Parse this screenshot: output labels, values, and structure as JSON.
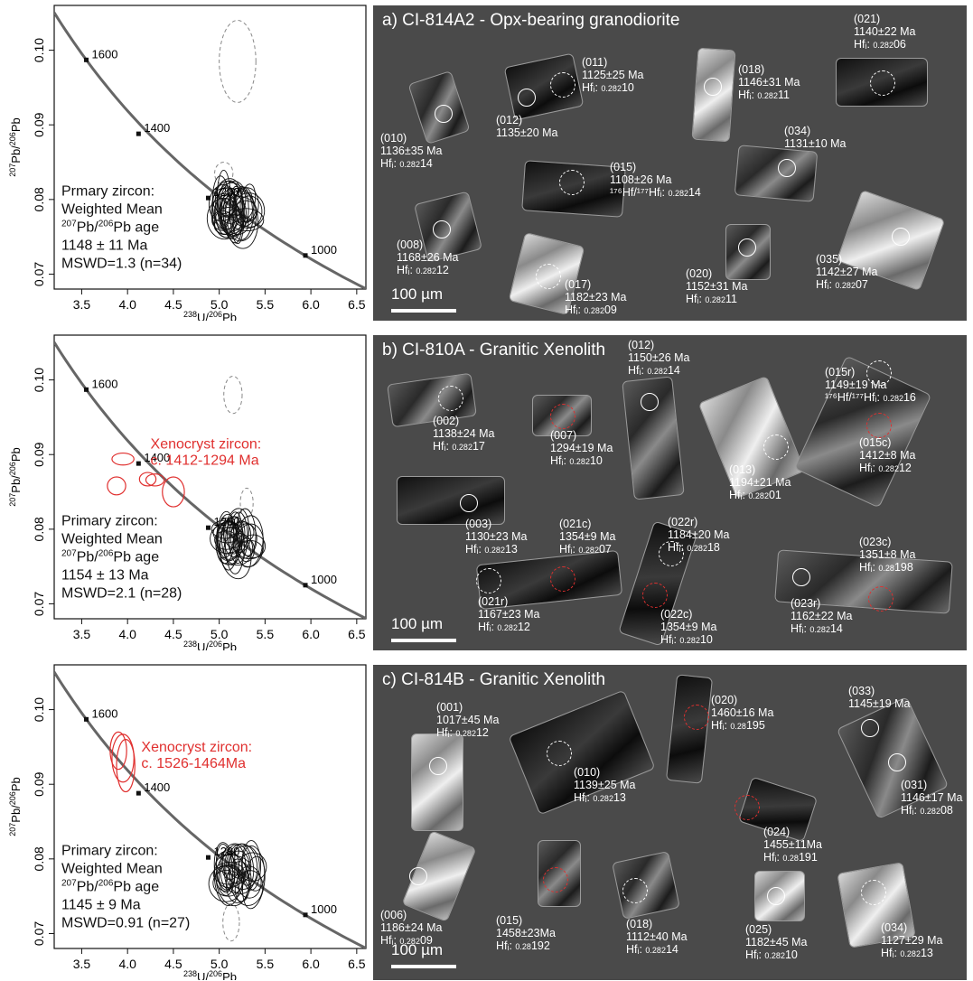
{
  "chart_data": [
    {
      "type": "scatter",
      "panel": "a",
      "xlabel_sup": "238",
      "xlabel_main": "U/",
      "xlabel_sup2": "206",
      "xlabel_end": "Pb",
      "ylabel_sup": "207",
      "ylabel_main": "Pb/",
      "ylabel_sup2": "206",
      "ylabel_end": "Pb",
      "xlim": [
        3.2,
        6.6
      ],
      "ylim": [
        0.068,
        0.106
      ],
      "xticks": [
        "3.5",
        "4.0",
        "4.5",
        "5.0",
        "5.5",
        "6.0",
        "6.5"
      ],
      "yticks": [
        "0.07",
        "0.08",
        "0.09",
        "0.10"
      ],
      "concordia_ticks": [
        {
          "age": "1600",
          "x": 3.55,
          "y": 0.0987
        },
        {
          "age": "1400",
          "x": 4.12,
          "y": 0.0888
        },
        {
          "age": "1200",
          "x": 4.88,
          "y": 0.0802
        },
        {
          "age": "1000",
          "x": 5.94,
          "y": 0.0725
        }
      ],
      "annotation_lines": [
        "Prmary zircon:",
        "Weighted Mean",
        "age",
        "1148 ± 11 Ma",
        "MSWD=1.3  (n=34)"
      ],
      "ratio_sup1": "207",
      "ratio_mid": "Pb/",
      "ratio_sup2": "206",
      "ratio_end": "Pb",
      "xeno_text": [],
      "primary_ellipses": {
        "count": 34,
        "center_x": 5.18,
        "center_y": 0.0783
      },
      "dashed_ellipses": [
        {
          "x": 5.2,
          "y": 0.0985,
          "rx": 0.2,
          "ry": 0.0055
        },
        {
          "x": 5.05,
          "y": 0.0835,
          "rx": 0.1,
          "ry": 0.0015
        }
      ],
      "xeno_ellipses": []
    },
    {
      "type": "scatter",
      "panel": "b",
      "xlabel_sup": "238",
      "xlabel_main": "U/",
      "xlabel_sup2": "206",
      "xlabel_end": "Pb",
      "ylabel_sup": "207",
      "ylabel_main": "Pb/",
      "ylabel_sup2": "206",
      "ylabel_end": "Pb",
      "xlim": [
        3.2,
        6.6
      ],
      "ylim": [
        0.068,
        0.106
      ],
      "xticks": [
        "3.5",
        "4.0",
        "4.5",
        "5.0",
        "5.5",
        "6.0",
        "6.5"
      ],
      "yticks": [
        "0.07",
        "0.08",
        "0.09",
        "0.10"
      ],
      "concordia_ticks": [
        {
          "age": "1600",
          "x": 3.55,
          "y": 0.0987
        },
        {
          "age": "1400",
          "x": 4.12,
          "y": 0.0888
        },
        {
          "age": "1200",
          "x": 4.88,
          "y": 0.0802
        },
        {
          "age": "1000",
          "x": 5.94,
          "y": 0.0725
        }
      ],
      "annotation_lines": [
        "Primary zircon:",
        "Weighted Mean",
        "age",
        "1154 ± 13 Ma",
        "MSWD=2.1 (n=28)"
      ],
      "ratio_sup1": "207",
      "ratio_mid": "Pb/",
      "ratio_sup2": "206",
      "ratio_end": "Pb",
      "xeno_text": [
        "Xenocryst zircon:",
        "c. 1412-1294 Ma"
      ],
      "primary_ellipses": {
        "count": 28,
        "center_x": 5.22,
        "center_y": 0.0784
      },
      "dashed_ellipses": [
        {
          "x": 5.15,
          "y": 0.098,
          "rx": 0.1,
          "ry": 0.0025
        },
        {
          "x": 5.3,
          "y": 0.0835,
          "rx": 0.07,
          "ry": 0.002
        }
      ],
      "xeno_ellipses": [
        {
          "x": 3.95,
          "y": 0.0894,
          "rx": 0.12,
          "ry": 0.0008
        },
        {
          "x": 3.88,
          "y": 0.0858,
          "rx": 0.1,
          "ry": 0.0012
        },
        {
          "x": 4.3,
          "y": 0.0866,
          "rx": 0.1,
          "ry": 0.0008
        },
        {
          "x": 4.22,
          "y": 0.0867,
          "rx": 0.09,
          "ry": 0.0009
        },
        {
          "x": 4.5,
          "y": 0.085,
          "rx": 0.12,
          "ry": 0.002
        }
      ]
    },
    {
      "type": "scatter",
      "panel": "c",
      "xlabel_sup": "238",
      "xlabel_main": "U/",
      "xlabel_sup2": "206",
      "xlabel_end": "Pb",
      "ylabel_sup": "207",
      "ylabel_main": "Pb/",
      "ylabel_sup2": "206",
      "ylabel_end": "Pb",
      "xlim": [
        3.2,
        6.6
      ],
      "ylim": [
        0.068,
        0.106
      ],
      "xticks": [
        "3.5",
        "4.0",
        "4.5",
        "5.0",
        "5.5",
        "6.0",
        "6.5"
      ],
      "yticks": [
        "0.07",
        "0.08",
        "0.09",
        "0.10"
      ],
      "concordia_ticks": [
        {
          "age": "1600",
          "x": 3.55,
          "y": 0.0987
        },
        {
          "age": "1400",
          "x": 4.12,
          "y": 0.0888
        },
        {
          "age": "1200",
          "x": 4.88,
          "y": 0.0802
        },
        {
          "age": "1000",
          "x": 5.94,
          "y": 0.0725
        }
      ],
      "annotation_lines": [
        "Primary zircon:",
        "Weighted Mean",
        "age",
        "1145 ± 9 Ma",
        "MSWD=0.91 (n=27)"
      ],
      "ratio_sup1": "207",
      "ratio_mid": "Pb/",
      "ratio_sup2": "206",
      "ratio_end": "Pb",
      "xeno_text": [
        "Xenocryst zircon:",
        "c. 1526-1464Ma"
      ],
      "primary_ellipses": {
        "count": 27,
        "center_x": 5.22,
        "center_y": 0.0778
      },
      "dashed_ellipses": [
        {
          "x": 5.13,
          "y": 0.0715,
          "rx": 0.09,
          "ry": 0.0025
        }
      ],
      "xeno_ellipses": [
        {
          "x": 3.95,
          "y": 0.0935,
          "rx": 0.12,
          "ry": 0.0032
        },
        {
          "x": 3.98,
          "y": 0.0925,
          "rx": 0.1,
          "ry": 0.0035
        },
        {
          "x": 3.9,
          "y": 0.0945,
          "rx": 0.09,
          "ry": 0.0025
        }
      ]
    }
  ],
  "panels": [
    {
      "title": "a) CI-814A2 - Opx-bearing granodiorite",
      "scale": "100 µm",
      "labels": [
        {
          "id": "011",
          "lines": [
            "(011)",
            "1125±25 Ma"
          ],
          "hf_main": "Hfᵢ: ",
          "hf_small": "0.282",
          "hf_tail": "10"
        },
        {
          "id": "018",
          "lines": [
            "(018)",
            "1146±31 Ma"
          ],
          "hf_main": "Hfᵢ: ",
          "hf_small": "0.282",
          "hf_tail": "11"
        },
        {
          "id": "021",
          "lines": [
            "(021)",
            "1140±22 Ma"
          ],
          "hf_main": "Hfᵢ: ",
          "hf_small": "0.282",
          "hf_tail": "06"
        },
        {
          "id": "012",
          "lines": [
            "(012)",
            "1135±20  Ma"
          ],
          "hf_main": "",
          "hf_small": "",
          "hf_tail": ""
        },
        {
          "id": "034",
          "lines": [
            "(034)",
            "1131±10  Ma"
          ],
          "hf_main": "",
          "hf_small": "",
          "hf_tail": ""
        },
        {
          "id": "010",
          "lines": [
            "(010)",
            "1136±35 Ma"
          ],
          "hf_main": "Hfᵢ: ",
          "hf_small": "0.282",
          "hf_tail": "14"
        },
        {
          "id": "015",
          "lines": [
            "(015)",
            "1108±26  Ma"
          ],
          "hf_main": "¹⁷⁶Hf/¹⁷⁷Hfᵢ: ",
          "hf_small": "0.282",
          "hf_tail": "14"
        },
        {
          "id": "008",
          "lines": [
            "(008)",
            "1168±26  Ma"
          ],
          "hf_main": "Hfᵢ: ",
          "hf_small": "0.282",
          "hf_tail": "12"
        },
        {
          "id": "017",
          "lines": [
            "(017)",
            "1182±23  Ma"
          ],
          "hf_main": "Hfᵢ: ",
          "hf_small": "0.282",
          "hf_tail": "09"
        },
        {
          "id": "020",
          "lines": [
            "(020)",
            "1152±31  Ma"
          ],
          "hf_main": "Hfᵢ: ",
          "hf_small": "0.282",
          "hf_tail": "11"
        },
        {
          "id": "035",
          "lines": [
            "(035)",
            "1142±27  Ma"
          ],
          "hf_main": "Hfᵢ: ",
          "hf_small": "0.282",
          "hf_tail": "07"
        }
      ]
    },
    {
      "title": "b) CI-810A - Granitic Xenolith",
      "scale": "100 µm",
      "labels": [
        {
          "id": "012",
          "lines": [
            "(012)",
            "1150±26  Ma"
          ],
          "hf_main": "Hfᵢ: ",
          "hf_small": "0.282",
          "hf_tail": "14"
        },
        {
          "id": "015r",
          "lines": [
            "(015r)",
            "1149±19  Ma"
          ],
          "hf_main": "¹⁷⁶Hf/¹⁷⁷Hfᵢ: ",
          "hf_small": "0.282",
          "hf_tail": "16"
        },
        {
          "id": "002",
          "lines": [
            "(002)",
            "1138±24  Ma"
          ],
          "hf_main": "Hfᵢ: ",
          "hf_small": "0.282",
          "hf_tail": "17"
        },
        {
          "id": "007",
          "lines": [
            "(007)",
            "1294±19  Ma"
          ],
          "hf_main": "Hfᵢ: ",
          "hf_small": "0.282",
          "hf_tail": "10"
        },
        {
          "id": "013",
          "lines": [
            "(013)",
            "1194±21  Ma"
          ],
          "hf_main": "Hfᵢ: ",
          "hf_small": "0.282",
          "hf_tail": "01"
        },
        {
          "id": "015c",
          "lines": [
            "(015c)",
            "1412±8  Ma"
          ],
          "hf_main": "Hfᵢ: ",
          "hf_small": "0.282",
          "hf_tail": "12"
        },
        {
          "id": "003",
          "lines": [
            "(003)",
            "1130±23  Ma"
          ],
          "hf_main": "Hfᵢ: ",
          "hf_small": "0.282",
          "hf_tail": "13"
        },
        {
          "id": "021c",
          "lines": [
            "(021c)",
            "1354±9  Ma"
          ],
          "hf_main": "Hfᵢ: ",
          "hf_small": "0.282",
          "hf_tail": "07"
        },
        {
          "id": "022r",
          "lines": [
            "(022r)",
            "1184±20  Ma"
          ],
          "hf_main": "Hfᵢ: ",
          "hf_small": "0.282",
          "hf_tail": "18"
        },
        {
          "id": "023c",
          "lines": [
            "(023c)",
            "1351±8  Ma"
          ],
          "hf_main": "Hfᵢ: ",
          "hf_small": "0.28",
          "hf_tail": "198"
        },
        {
          "id": "021r",
          "lines": [
            "(021r)",
            "1167±23  Ma"
          ],
          "hf_main": "Hfᵢ: ",
          "hf_small": "0.282",
          "hf_tail": "12"
        },
        {
          "id": "022c",
          "lines": [
            "(022c)",
            "1354±9  Ma"
          ],
          "hf_main": "Hfᵢ: ",
          "hf_small": "0.282",
          "hf_tail": "10"
        },
        {
          "id": "023r",
          "lines": [
            "(023r)",
            "1162±22  Ma"
          ],
          "hf_main": "Hfᵢ: ",
          "hf_small": "0.282",
          "hf_tail": "14"
        }
      ]
    },
    {
      "title": "c) CI-814B - Granitic Xenolith",
      "scale": "100 µm",
      "labels": [
        {
          "id": "001",
          "lines": [
            "(001)",
            "1017±45  Ma"
          ],
          "hf_main": "Hfᵢ: ",
          "hf_small": "0.282",
          "hf_tail": "12"
        },
        {
          "id": "020",
          "lines": [
            "(020)",
            "1460±16  Ma"
          ],
          "hf_main": "Hfᵢ: ",
          "hf_small": "0.28",
          "hf_tail": "195"
        },
        {
          "id": "033",
          "lines": [
            "(033)",
            "1145±19  Ma"
          ],
          "hf_main": "",
          "hf_small": "",
          "hf_tail": ""
        },
        {
          "id": "010",
          "lines": [
            "(010)",
            "1139±25  Ma"
          ],
          "hf_main": "Hfᵢ: ",
          "hf_small": "0.282",
          "hf_tail": "13"
        },
        {
          "id": "031",
          "lines": [
            "(031)",
            "1146±17  Ma"
          ],
          "hf_main": "Hfᵢ: ",
          "hf_small": "0.282",
          "hf_tail": "08"
        },
        {
          "id": "024",
          "lines": [
            "(024)",
            "1455±11Ma"
          ],
          "hf_main": "Hfᵢ: ",
          "hf_small": "0.28",
          "hf_tail": "191"
        },
        {
          "id": "006",
          "lines": [
            "(006)",
            "1186±24  Ma"
          ],
          "hf_main": "Hfᵢ: ",
          "hf_small": "0.282",
          "hf_tail": "09"
        },
        {
          "id": "015",
          "lines": [
            "(015)",
            "1458±23Ma"
          ],
          "hf_main": "Hfᵢ: ",
          "hf_small": "0.28",
          "hf_tail": "192"
        },
        {
          "id": "018",
          "lines": [
            "(018)",
            "1112±40  Ma"
          ],
          "hf_main": "Hfᵢ: ",
          "hf_small": "0.282",
          "hf_tail": "14"
        },
        {
          "id": "025",
          "lines": [
            "(025)",
            "1182±45  Ma"
          ],
          "hf_main": "Hfᵢ: ",
          "hf_small": "0.282",
          "hf_tail": "10"
        },
        {
          "id": "034",
          "lines": [
            "(034)",
            "1127±29  Ma"
          ],
          "hf_main": "Hfᵢ: ",
          "hf_small": "0.282",
          "hf_tail": "13"
        }
      ]
    }
  ],
  "colors": {
    "panel_bg": "#4a4a4a",
    "xenocryst": "#e0302f",
    "concordia": "#666666",
    "text": "#111111"
  }
}
